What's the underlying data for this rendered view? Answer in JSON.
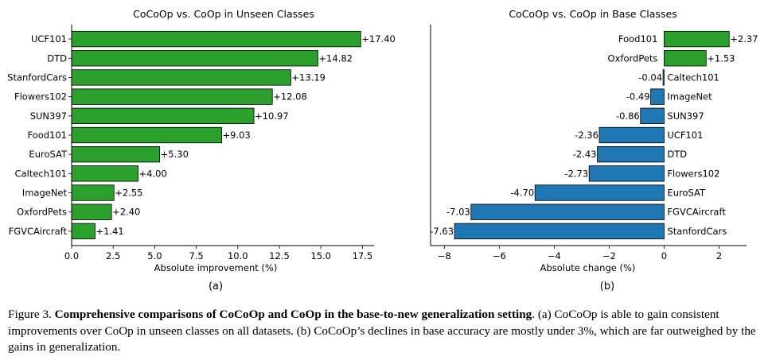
{
  "chart_data": [
    {
      "type": "bar",
      "orientation": "horizontal",
      "title": "CoCoOp vs. CoOp in Unseen Classes",
      "xlabel": "Absolute improvement (%)",
      "sublabel": "(a)",
      "categories": [
        "UCF101",
        "DTD",
        "StanfordCars",
        "Flowers102",
        "SUN397",
        "Food101",
        "EuroSAT",
        "Caltech101",
        "ImageNet",
        "OxfordPets",
        "FGVCAircraft"
      ],
      "values": [
        17.4,
        14.82,
        13.19,
        12.08,
        10.97,
        9.03,
        5.3,
        4.0,
        2.55,
        2.4,
        1.41
      ],
      "value_labels": [
        "+17.40",
        "+14.82",
        "+13.19",
        "+12.08",
        "+10.97",
        "+9.03",
        "+5.30",
        "+4.00",
        "+2.55",
        "+2.40",
        "+1.41"
      ],
      "xlim": [
        0,
        18.2
      ],
      "xticks": [
        0,
        2.5,
        5,
        7.5,
        10,
        12.5,
        15,
        17.5
      ],
      "xtick_labels": [
        "0.0",
        "2.5",
        "5.0",
        "7.5",
        "10.0",
        "12.5",
        "15.0",
        "17.5"
      ],
      "bar_color": "#2ca02c",
      "grid": false
    },
    {
      "type": "bar",
      "orientation": "horizontal",
      "title": "CoCoOp vs. CoOp in Base Classes",
      "xlabel": "Absolute change (%)",
      "sublabel": "(b)",
      "categories": [
        "Food101",
        "OxfordPets",
        "Caltech101",
        "ImageNet",
        "SUN397",
        "UCF101",
        "DTD",
        "Flowers102",
        "EuroSAT",
        "FGVCAircraft",
        "StanfordCars"
      ],
      "values": [
        2.37,
        1.53,
        -0.04,
        -0.49,
        -0.86,
        -2.36,
        -2.43,
        -2.73,
        -4.7,
        -7.03,
        -7.63
      ],
      "value_labels": [
        "+2.37",
        "+1.53",
        "-0.04",
        "-0.49",
        "-0.86",
        "-2.36",
        "-2.43",
        "-2.73",
        "-4.70",
        "-7.03",
        "-7.63"
      ],
      "xlim": [
        -8.5,
        3.0
      ],
      "xticks": [
        -8,
        -6,
        -4,
        -2,
        0,
        2
      ],
      "xtick_labels": [
        "−8",
        "−6",
        "−4",
        "−2",
        "0",
        "2"
      ],
      "positive_color": "#2ca02c",
      "negative_color": "#1f77b4",
      "grid": false
    }
  ],
  "caption": {
    "prefix": "Figure 3. ",
    "bold": "Comprehensive comparisons of CoCoOp and CoOp in the base-to-new generalization setting",
    "rest": ". (a) CoCoOp is able to gain consistent improvements over CoOp in unseen classes on all datasets. (b) CoCoOp’s declines in base accuracy are mostly under 3%, which are far outweighed by the gains in generalization."
  }
}
